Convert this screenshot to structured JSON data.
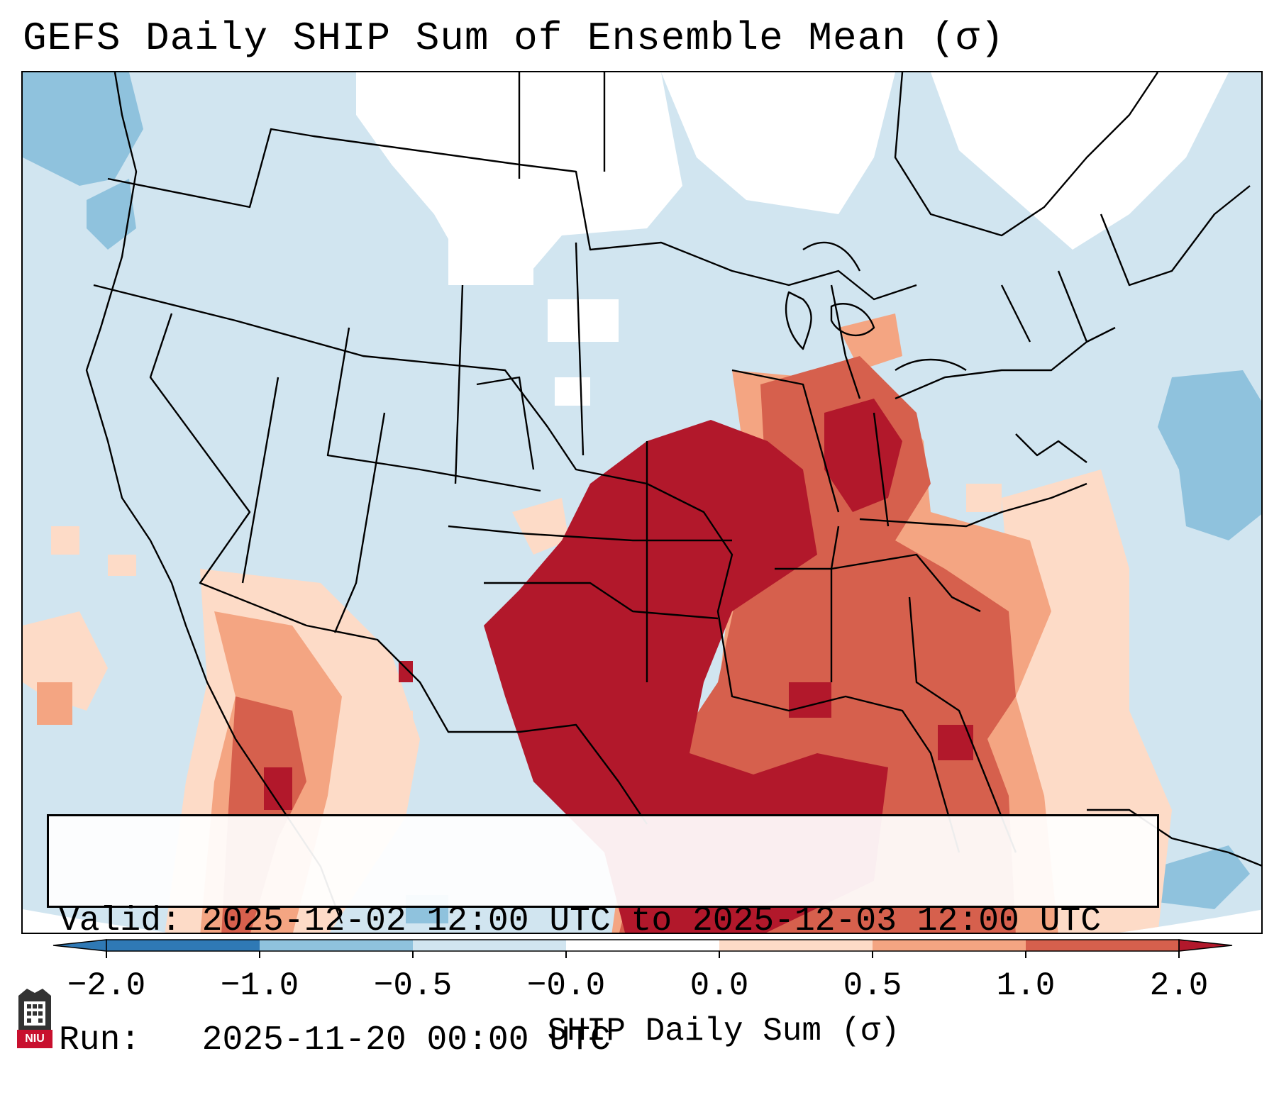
{
  "title": "GEFS Daily SHIP Sum of Ensemble Mean (σ)",
  "info": {
    "valid_label": "Valid:",
    "valid_value": "2025-12-02 12:00 UTC to 2025-12-03 12:00 UTC",
    "run_label": "Run:",
    "run_value": "2025-11-20 00:00 UTC"
  },
  "colorbar": {
    "label": "SHIP Daily Sum (σ)",
    "ticks": [
      "−2.0",
      "−1.0",
      "−0.5",
      "−0.0",
      "0.0",
      "0.5",
      "1.0",
      "2.0"
    ],
    "colors": [
      "#2f79b5",
      "#8fc2dd",
      "#d1e5f0",
      "#ffffff",
      "#fddbc7",
      "#f4a582",
      "#d6604d",
      "#b2182b"
    ],
    "extend": "both"
  },
  "map": {
    "region": "North America (CONUS, Mexico, Gulf of Mexico, Caribbean)",
    "base_color": "#d1e5f0",
    "anomaly_levels": {
      "strong_negative": "#8fc2dd",
      "near_zero": "#ffffff",
      "weak_positive": "#fddbc7",
      "moderate_positive": "#f4a582",
      "high_positive": "#d6604d",
      "very_high_positive": "#b2182b"
    }
  },
  "logo": {
    "text": "NIU",
    "color": "#c8102e"
  }
}
